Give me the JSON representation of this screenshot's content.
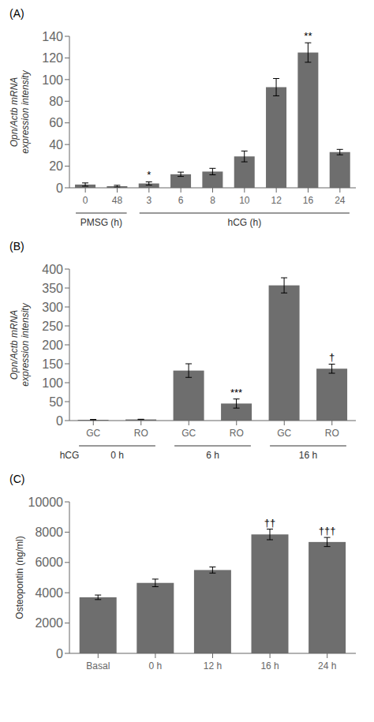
{
  "chart_data": [
    {
      "type": "bar",
      "title": "(A)",
      "ylabel": "Opn/Actb mRNA\nexpression intensity",
      "categories": [
        "0",
        "48",
        "3",
        "6",
        "8",
        "10",
        "12",
        "16",
        "24"
      ],
      "values": [
        3.0,
        1.5,
        4.0,
        12.5,
        15.0,
        29.0,
        93.0,
        125.0,
        33.0
      ],
      "errors": [
        1.5,
        0.8,
        1.5,
        2.0,
        3.0,
        5.0,
        8.0,
        9.0,
        2.5
      ],
      "annotations": [
        null,
        null,
        "*",
        null,
        null,
        null,
        null,
        "**",
        null
      ],
      "groups": [
        {
          "label": "PMSG (h)",
          "start": 0,
          "end": 1
        },
        {
          "label": "hCG (h)",
          "start": 2,
          "end": 8
        }
      ],
      "color": "#6e6e6e",
      "ylim": [
        0,
        140
      ],
      "yticks": [
        0,
        20,
        40,
        60,
        80,
        100,
        120,
        140
      ],
      "grid": false
    },
    {
      "type": "bar",
      "title": "(B)",
      "ylabel": "Opn/Actb mRNA\nexpression intensity",
      "categories": [
        "GC",
        "RO",
        "GC",
        "RO",
        "GC",
        "RO"
      ],
      "values": [
        2.0,
        3.0,
        132.0,
        45.0,
        357.0,
        137.0
      ],
      "errors": [
        1.0,
        0.5,
        18.0,
        12.0,
        20.0,
        12.0
      ],
      "annotations": [
        null,
        null,
        null,
        "***",
        null,
        "†"
      ],
      "group_title": "hCG",
      "groups": [
        {
          "label": "0 h",
          "start": 0,
          "end": 1
        },
        {
          "label": "6 h",
          "start": 2,
          "end": 3
        },
        {
          "label": "16 h",
          "start": 4,
          "end": 5
        }
      ],
      "color": "#6e6e6e",
      "ylim": [
        0,
        400
      ],
      "yticks": [
        0,
        50,
        100,
        150,
        200,
        250,
        300,
        350,
        400
      ],
      "grid": false
    },
    {
      "type": "bar",
      "title": "(C)",
      "ylabel": "Osteopontin (ng/ml)",
      "categories": [
        "Basal",
        "0 h",
        "12 h",
        "16 h",
        "24 h"
      ],
      "values": [
        3700,
        4650,
        5500,
        7850,
        7350
      ],
      "errors": [
        150,
        250,
        200,
        350,
        300
      ],
      "annotations": [
        null,
        null,
        null,
        "††",
        "†††"
      ],
      "color": "#6e6e6e",
      "ylim": [
        0,
        10000
      ],
      "yticks": [
        0,
        2000,
        4000,
        6000,
        8000,
        10000
      ],
      "grid": false
    }
  ]
}
